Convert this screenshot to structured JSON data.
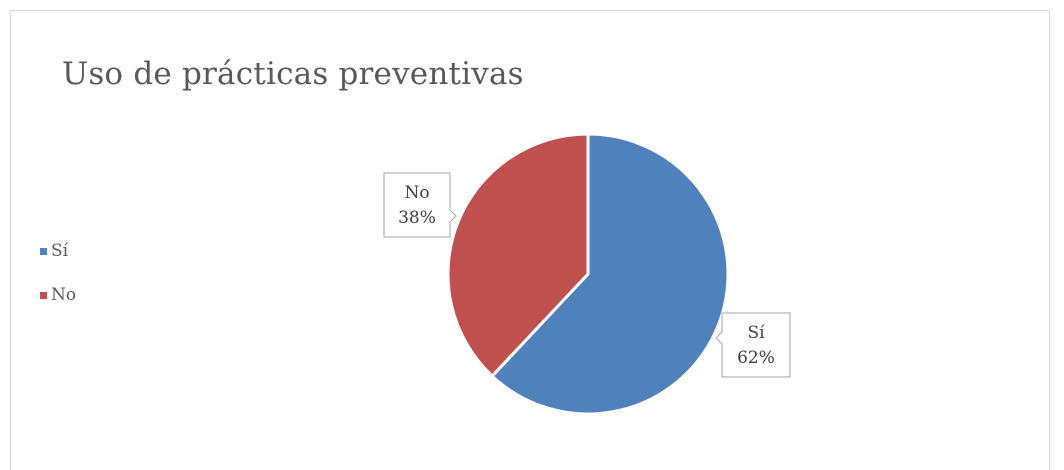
{
  "chart_data": {
    "type": "pie",
    "title": "Uso de prácticas preventivas",
    "categories": [
      "Sí",
      "No"
    ],
    "values": [
      62,
      38
    ],
    "value_labels": [
      "62%",
      "38%"
    ],
    "colors": [
      "#4f81bd",
      "#c0504d"
    ],
    "legend": {
      "position": "left",
      "items": [
        {
          "label": "Sí",
          "color": "#4f81bd"
        },
        {
          "label": "No",
          "color": "#c0504d"
        }
      ]
    }
  }
}
